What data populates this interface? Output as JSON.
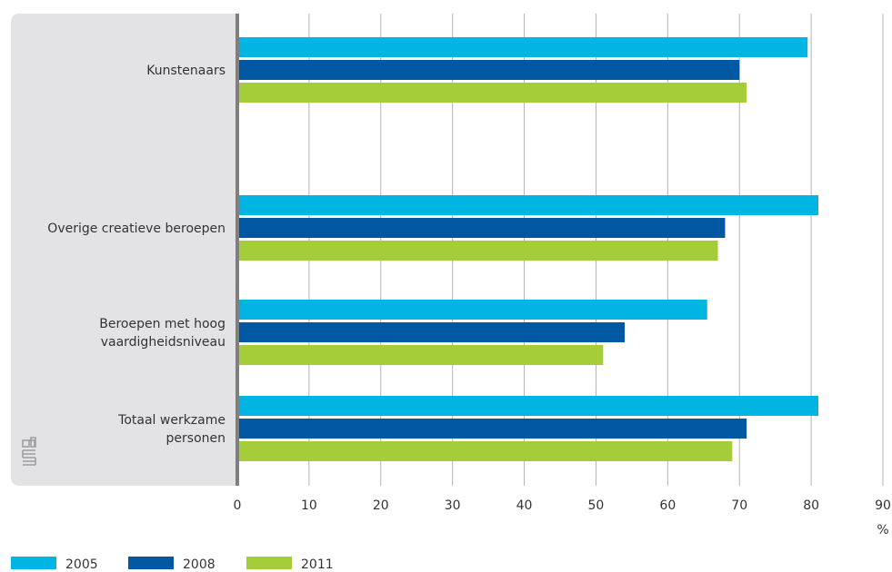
{
  "chart_data": {
    "type": "bar",
    "orientation": "horizontal",
    "title": "",
    "xlabel": "",
    "ylabel": "",
    "unit": "%",
    "xlim": [
      0,
      90
    ],
    "xticks": [
      "0",
      "10",
      "20",
      "30",
      "40",
      "50",
      "60",
      "70",
      "80",
      "90"
    ],
    "grid": true,
    "legend_position": "bottom-left",
    "categories": [
      {
        "label_lines": [
          "Kunstenaars"
        ]
      },
      {
        "label_lines": [
          "Overige creatieve beroepen"
        ]
      },
      {
        "label_lines": [
          "Beroepen met hoog",
          "vaardigheidsniveau"
        ]
      },
      {
        "label_lines": [
          "Totaal werkzame",
          "personen"
        ]
      }
    ],
    "series": [
      {
        "name": "2005",
        "color": "#00b5e2",
        "values": [
          79.5,
          81,
          65.5,
          81
        ]
      },
      {
        "name": "2008",
        "color": "#0058a3",
        "values": [
          70,
          68,
          54,
          71
        ]
      },
      {
        "name": "2011",
        "color": "#a5cd39",
        "values": [
          71,
          67,
          51,
          69
        ]
      }
    ]
  },
  "colors": {
    "label_panel": "#e3e3e5",
    "axis": "#7f7f7f",
    "grid": "#b3b3b3",
    "logo": "#9b9b9b"
  }
}
